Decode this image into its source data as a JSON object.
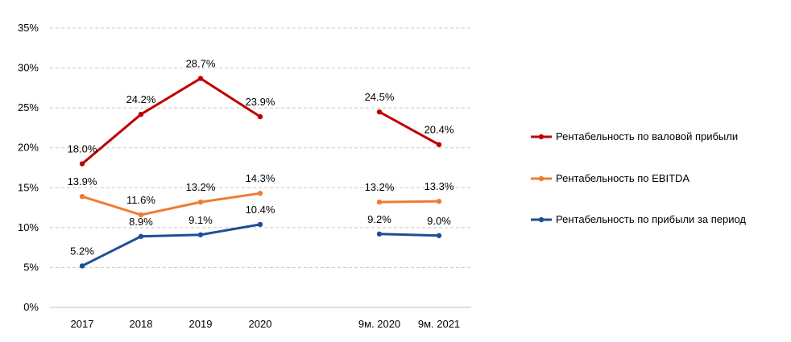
{
  "chart_data": {
    "type": "line",
    "title": "",
    "xlabel": "",
    "ylabel": "",
    "categories": [
      "2017",
      "2018",
      "2019",
      "2020",
      "",
      "9м. 2020",
      "9м. 2021"
    ],
    "y_ticks": [
      "0%",
      "5%",
      "10%",
      "15%",
      "20%",
      "25%",
      "30%",
      "35%"
    ],
    "ylim": [
      0,
      35
    ],
    "grid": true,
    "legend_position": "right",
    "series": [
      {
        "name": "Рентабельность по валовой прибыли",
        "color": "#C00000",
        "values": [
          18.0,
          24.2,
          28.7,
          23.9,
          null,
          24.5,
          20.4
        ],
        "labels": [
          "18.0%",
          "24.2%",
          "28.7%",
          "23.9%",
          "",
          "24.5%",
          "20.4%"
        ]
      },
      {
        "name": "Рентабельность по EBITDA",
        "color": "#ED7D31",
        "values": [
          13.9,
          11.6,
          13.2,
          14.3,
          null,
          13.2,
          13.3
        ],
        "labels": [
          "13.9%",
          "11.6%",
          "13.2%",
          "14.3%",
          "",
          "13.2%",
          "13.3%"
        ]
      },
      {
        "name": "Рентабельность по прибыли за период",
        "color": "#1F4E99",
        "values": [
          5.2,
          8.9,
          9.1,
          10.4,
          null,
          9.2,
          9.0
        ],
        "labels": [
          "5.2%",
          "8.9%",
          "9.1%",
          "10.4%",
          "",
          "9.2%",
          "9.0%"
        ]
      }
    ]
  }
}
